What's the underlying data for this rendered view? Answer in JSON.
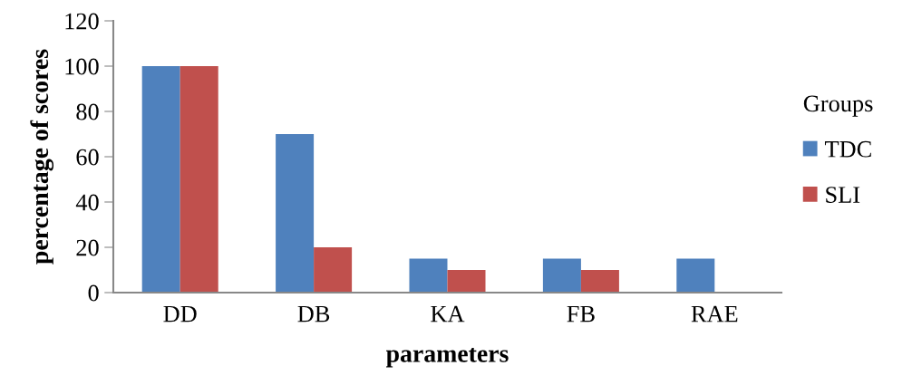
{
  "chart_data": {
    "type": "bar",
    "xlabel": "parameters",
    "ylabel": "percentage of scores",
    "legend_title": "Groups",
    "categories": [
      "DD",
      "DB",
      "KA",
      "FB",
      "RAE"
    ],
    "series": [
      {
        "name": "TDC",
        "color": "#4f81bd",
        "values": [
          100,
          70,
          15,
          15,
          15
        ]
      },
      {
        "name": "SLI",
        "color": "#c0504d",
        "values": [
          100,
          20,
          10,
          10,
          0
        ]
      }
    ],
    "ylim": [
      0,
      120
    ],
    "yticks": [
      0,
      20,
      40,
      60,
      80,
      100,
      120
    ],
    "grid": false,
    "legend": "right"
  }
}
